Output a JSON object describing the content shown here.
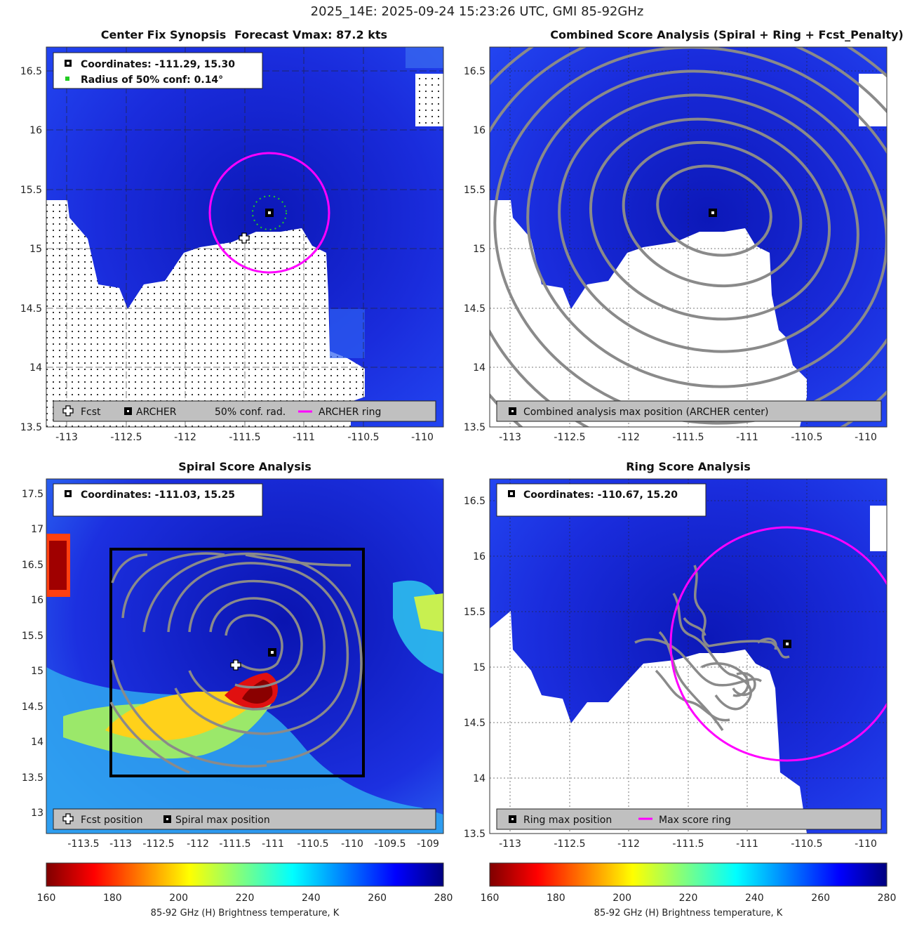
{
  "title": "2025_14E: 2025-09-24 15:23:26 UTC, GMI 85-92GHz",
  "colors": {
    "ocean": "#1e2ee0",
    "ocean_dark": "#0b16b4",
    "land": "#ffffff",
    "contour": "#888888",
    "ring": "#ff00ff",
    "conf": "#22cc22",
    "legend_bg": "#c0c0c0"
  },
  "colorbar": {
    "label": "85-92 GHz (H) Brightness temperature, K",
    "ticks": [
      "160",
      "180",
      "200",
      "220",
      "240",
      "260",
      "280"
    ],
    "range": [
      160,
      280
    ]
  },
  "panels": {
    "p1": {
      "title_left": "Center Fix Synopsis",
      "title_right": "Forecast Vmax: 87.2 kts",
      "info_coords": "Coordinates: -111.29, 15.30",
      "info_radius": "Radius of 50% conf: 0.14°",
      "legend_fcst": "Fcst",
      "legend_archer": "ARCHER",
      "legend_conf": "50% conf. rad.",
      "legend_ring": "ARCHER ring"
    },
    "p2": {
      "title": "Combined Score Analysis (Spiral + Ring + Fcst_Penalty)",
      "legend_max": "Combined analysis max position (ARCHER center)"
    },
    "p3": {
      "title": "Spiral Score Analysis",
      "info_coords": "Coordinates: -111.03, 15.25",
      "legend_fcst": "Fcst position",
      "legend_max": "Spiral max position"
    },
    "p4": {
      "title": "Ring Score Analysis",
      "info_coords": "Coordinates: -110.67, 15.20",
      "legend_max": "Ring max position",
      "legend_ring": "Max score ring"
    }
  },
  "chart_data": [
    {
      "type": "heatmap",
      "name": "Center Fix Synopsis",
      "xlim": [
        -113.2,
        -109.8
      ],
      "ylim": [
        13.5,
        16.7
      ],
      "xticks": [
        -113,
        -112.5,
        -112,
        -111.5,
        -111,
        -110.5,
        -110
      ],
      "yticks": [
        13.5,
        14,
        14.5,
        15,
        15.5,
        16,
        16.5
      ],
      "archer_center": [
        -111.29,
        15.3
      ],
      "forecast_position": [
        -111.5,
        15.1
      ],
      "conf_radius_deg": 0.14,
      "archer_ring": {
        "center": [
          -111.29,
          15.3
        ],
        "radius_deg": 0.52
      },
      "land_edge": [
        [
          -113.2,
          15.4
        ],
        [
          -113.0,
          15.5
        ],
        [
          -112.85,
          15.1
        ],
        [
          -112.6,
          14.75
        ],
        [
          -112.3,
          14.55
        ],
        [
          -112.0,
          14.8
        ],
        [
          -111.7,
          15.0
        ],
        [
          -111.5,
          15.1
        ],
        [
          -111.3,
          15.1
        ],
        [
          -111.0,
          15.1
        ],
        [
          -110.8,
          14.9
        ],
        [
          -110.8,
          14.2
        ],
        [
          -110.5,
          14.1
        ],
        [
          -110.5,
          13.7
        ]
      ]
    },
    {
      "type": "heatmap",
      "name": "Combined Score Analysis",
      "xlim": [
        -113.2,
        -109.8
      ],
      "ylim": [
        13.5,
        16.7
      ],
      "xticks": [
        -113,
        -112.5,
        -112,
        -111.5,
        -111,
        -110.5,
        -110
      ],
      "yticks": [
        13.5,
        14,
        14.5,
        15,
        15.5,
        16,
        16.5
      ],
      "max_position": [
        -111.29,
        15.3
      ],
      "contour_center": [
        -111.3,
        15.3
      ],
      "contour_radii_deg": [
        0.4,
        0.65,
        0.9,
        1.15,
        1.4,
        1.65,
        1.9,
        2.15
      ]
    },
    {
      "type": "heatmap",
      "name": "Spiral Score Analysis",
      "xlim": [
        -113.9,
        -108.9
      ],
      "ylim": [
        12.7,
        17.7
      ],
      "xticks": [
        -113.5,
        -113,
        -112.5,
        -112,
        -111.5,
        -111,
        -110.5,
        -110,
        -109.5,
        -109
      ],
      "yticks": [
        13,
        13.5,
        14,
        14.5,
        15,
        15.5,
        16,
        16.5,
        17,
        17.5
      ],
      "max_position": [
        -111.03,
        15.25
      ],
      "forecast_position": [
        -111.5,
        15.1
      ],
      "search_box": {
        "x": [
          -113.0,
          -109.8
        ],
        "y": [
          13.5,
          16.7
        ]
      },
      "cold_core": [
        [
          -111.2,
          14.7,
          160
        ],
        [
          -111.5,
          14.6,
          170
        ],
        [
          -111.0,
          14.9,
          175
        ]
      ]
    },
    {
      "type": "heatmap",
      "name": "Ring Score Analysis",
      "xlim": [
        -113.2,
        -109.8
      ],
      "ylim": [
        13.5,
        16.7
      ],
      "xticks": [
        -113,
        -112.5,
        -112,
        -111.5,
        -111,
        -110.5,
        -110
      ],
      "yticks": [
        13.5,
        14,
        14.5,
        15,
        15.5,
        16,
        16.5
      ],
      "max_position": [
        -110.67,
        15.2
      ],
      "max_score_ring": {
        "center": [
          -110.67,
          15.2
        ],
        "radius_deg": 1.05
      }
    }
  ]
}
